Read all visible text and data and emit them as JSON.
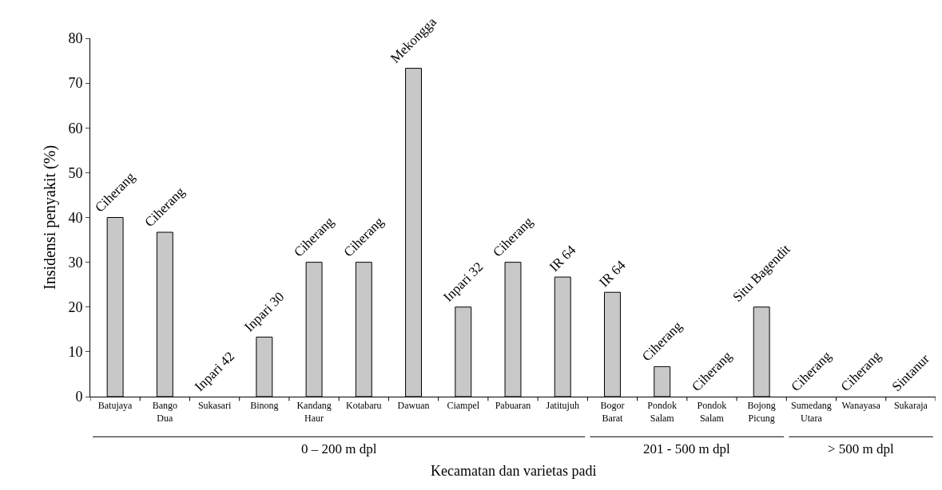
{
  "chart_data": {
    "type": "bar",
    "xlabel": "Kecamatan dan varietas padi",
    "ylabel": "Insidensi penyakit (%)",
    "categories": [
      "Batujaya",
      "Bango Dua",
      "Sukasari",
      "Binong",
      "Kandang Haur",
      "Kotabaru",
      "Dawuan",
      "Ciampel",
      "Pabuaran",
      "Jatitujuh",
      "Bogor Barat",
      "Pondok Salam",
      "Pondok Salam",
      "Bojong Picung",
      "Sumedang Utara",
      "Wanayasa",
      "Sukaraja"
    ],
    "values": [
      40,
      36.7,
      0,
      13.3,
      30,
      30,
      73.3,
      20,
      30,
      26.7,
      23.3,
      6.7,
      0,
      20,
      0,
      0,
      0
    ],
    "value_labels": [
      "Ciherang",
      "Ciherang",
      "Inpari 42",
      "Inpari 30",
      "Ciherang",
      "Ciherang",
      "Mekongga",
      "Inpari 32",
      "Ciherang",
      "IR 64",
      "IR 64",
      "Ciherang",
      "Ciherang",
      "Situ Bagendit",
      "Ciherang",
      "Ciherang",
      "Sintanur"
    ],
    "color": "#c8c8c8",
    "ylim": [
      0,
      80
    ],
    "yticks": [
      0,
      10,
      20,
      30,
      40,
      50,
      60,
      70,
      80
    ],
    "annotations": [
      "0 – 200 m dpl",
      "201 - 500 m dpl",
      "> 500 m dpl"
    ]
  }
}
